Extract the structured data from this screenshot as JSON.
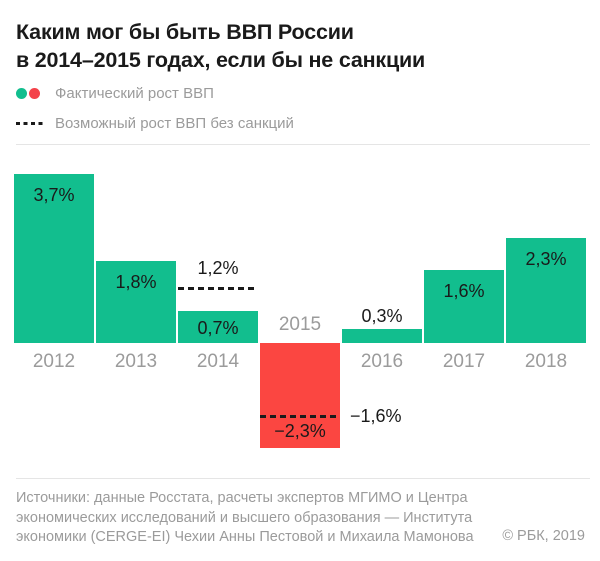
{
  "title": {
    "line1": "Каким мог бы быть ВВП России",
    "line2": "в 2014–2015 годах, если бы не санкции"
  },
  "legend": {
    "actual_label": "Фактический рост ВВП",
    "possible_label": "Возможный рост ВВП без санкций"
  },
  "chart_data": {
    "type": "bar",
    "title": "Каким мог бы быть ВВП России в 2014–2015 годах, если бы не санкции",
    "categories": [
      "2012",
      "2013",
      "2014",
      "2015",
      "2016",
      "2017",
      "2018"
    ],
    "series": [
      {
        "name": "Фактический рост ВВП",
        "values": [
          3.7,
          1.8,
          0.7,
          -2.3,
          0.3,
          1.6,
          2.3
        ],
        "labels": [
          "3,7%",
          "1,8%",
          "0,7%",
          "−2,3%",
          "0,3%",
          "1,6%",
          "2,3%"
        ],
        "label_placement": [
          "inside-top",
          "inside-top",
          "inside-center",
          "inside-bottom",
          "above",
          "inside-top",
          "inside-top"
        ]
      },
      {
        "name": "Возможный рост ВВП без санкций",
        "values": [
          null,
          null,
          1.2,
          -1.6,
          null,
          null,
          null
        ],
        "labels": [
          null,
          null,
          "1,2%",
          "−1,6%",
          null,
          null,
          null
        ],
        "label_placement": [
          null,
          null,
          "above-line",
          "right-of-line",
          null,
          null,
          null
        ],
        "style": "dashed"
      }
    ],
    "xlabel": "",
    "ylabel": "",
    "unit": "%",
    "ylim": [
      -2.6,
      4.3
    ],
    "grid": false,
    "legend_position": "top-left"
  },
  "footer": {
    "sources_lines": [
      "Источники: данные Росстата, расчеты экспертов МГИМО и Центра",
      "экономических исследований и высшего образования — Института",
      "экономики (CERGE-EI) Чехии Анны Пестовой и Михаила Мамонова"
    ],
    "copyright": "© РБК, 2019"
  },
  "colors": {
    "positive": "#12be8e",
    "negative": "#fb4641",
    "dash": "#1a1a1a",
    "text_dark": "#1a1a1a",
    "text_gray": "#9b9b9b",
    "hairline": "#e5e5e5"
  }
}
